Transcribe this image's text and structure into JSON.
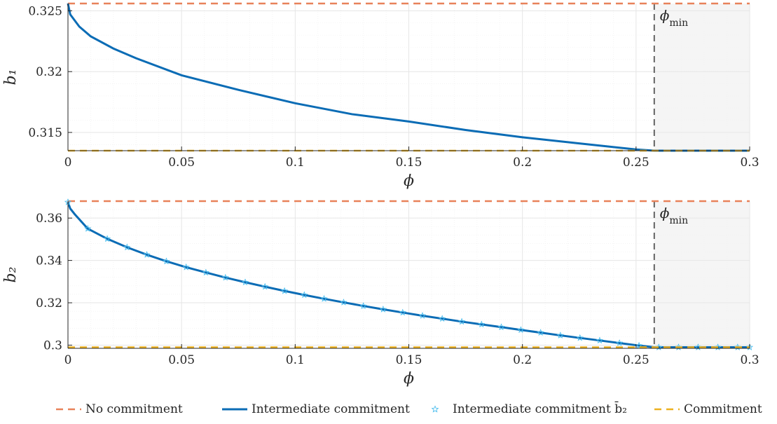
{
  "chart_data": [
    {
      "type": "line",
      "xlabel": "ϕ",
      "ylabel": "b₁",
      "xlim": [
        0,
        0.3
      ],
      "ylim": [
        0.3135,
        0.3256
      ],
      "xticks": [
        0,
        0.05,
        0.1,
        0.15,
        0.2,
        0.25,
        0.3
      ],
      "xtick_labels": [
        "0",
        "0.05",
        "0.1",
        "0.15",
        "0.2",
        "0.25",
        "0.3"
      ],
      "yticks": [
        0.315,
        0.32,
        0.325
      ],
      "ytick_labels": [
        "0.315",
        "0.32",
        "0.325"
      ],
      "grid": true,
      "shaded_region": [
        0.258,
        0.3
      ],
      "annotations": [
        {
          "text": "ϕmin",
          "x": 0.258
        }
      ],
      "series": [
        {
          "name": "No commitment",
          "style": "dashed",
          "color": "#E8825A",
          "x": [
            0,
            0.3
          ],
          "y": [
            0.3256,
            0.3256
          ]
        },
        {
          "name": "Intermediate commitment",
          "style": "solid",
          "color": "#0B6CB5",
          "x": [
            0,
            0.001,
            0.005,
            0.01,
            0.02,
            0.03,
            0.05,
            0.075,
            0.1,
            0.125,
            0.15,
            0.175,
            0.2,
            0.225,
            0.25,
            0.258,
            0.27,
            0.3
          ],
          "y": [
            0.3256,
            0.3247,
            0.3237,
            0.3229,
            0.3219,
            0.3211,
            0.3197,
            0.3185,
            0.3174,
            0.3165,
            0.3159,
            0.3152,
            0.3146,
            0.3141,
            0.3136,
            0.3135,
            0.3135,
            0.3135
          ]
        },
        {
          "name": "Commitment",
          "style": "dashed",
          "color": "#EDB120",
          "x": [
            0,
            0.3
          ],
          "y": [
            0.3135,
            0.3135
          ]
        }
      ]
    },
    {
      "type": "line",
      "xlabel": "ϕ",
      "ylabel": "b₂",
      "xlim": [
        0,
        0.3
      ],
      "ylim": [
        0.2985,
        0.368
      ],
      "xticks": [
        0,
        0.05,
        0.1,
        0.15,
        0.2,
        0.25,
        0.3
      ],
      "xtick_labels": [
        "0",
        "0.05",
        "0.1",
        "0.15",
        "0.2",
        "0.25",
        "0.3"
      ],
      "yticks": [
        0.3,
        0.32,
        0.34,
        0.36
      ],
      "ytick_labels": [
        "0.3",
        "0.32",
        "0.34",
        "0.36"
      ],
      "grid": true,
      "shaded_region": [
        0.258,
        0.3
      ],
      "annotations": [
        {
          "text": "ϕmin",
          "x": 0.258
        }
      ],
      "series": [
        {
          "name": "No commitment",
          "style": "dashed",
          "color": "#E8825A",
          "x": [
            0,
            0.3
          ],
          "y": [
            0.368,
            0.368
          ]
        },
        {
          "name": "Intermediate commitment",
          "style": "solid",
          "color": "#0B6CB5",
          "x": [
            0,
            0.001,
            0.003,
            0.0087,
            0.0173,
            0.026,
            0.0347,
            0.0433,
            0.052,
            0.0607,
            0.0693,
            0.078,
            0.0867,
            0.0953,
            0.104,
            0.1127,
            0.1213,
            0.13,
            0.1387,
            0.1473,
            0.156,
            0.1647,
            0.1733,
            0.182,
            0.1907,
            0.1993,
            0.208,
            0.2167,
            0.2253,
            0.234,
            0.2427,
            0.2513,
            0.258,
            0.3
          ],
          "y": [
            0.3675,
            0.3645,
            0.3618,
            0.355,
            0.3502,
            0.3462,
            0.3427,
            0.3396,
            0.3368,
            0.3343,
            0.3319,
            0.3297,
            0.3276,
            0.3256,
            0.3237,
            0.3219,
            0.3202,
            0.3185,
            0.3169,
            0.3154,
            0.3139,
            0.3125,
            0.3111,
            0.3098,
            0.3085,
            0.3072,
            0.3059,
            0.3046,
            0.3034,
            0.3022,
            0.301,
            0.2998,
            0.299,
            0.299
          ]
        },
        {
          "name": "Intermediate commitment b̄₂",
          "style": "markers",
          "marker": "star",
          "color": "#4DBEEE",
          "x": [
            0,
            0.0087,
            0.0173,
            0.026,
            0.0347,
            0.0433,
            0.052,
            0.0607,
            0.0693,
            0.078,
            0.0867,
            0.0953,
            0.104,
            0.1127,
            0.1213,
            0.13,
            0.1387,
            0.1473,
            0.156,
            0.1647,
            0.1733,
            0.182,
            0.1907,
            0.1993,
            0.208,
            0.2167,
            0.2253,
            0.234,
            0.2427,
            0.2513,
            0.26,
            0.2687,
            0.2773,
            0.286,
            0.2947,
            0.3
          ],
          "y": [
            0.3675,
            0.355,
            0.3502,
            0.3462,
            0.3427,
            0.3396,
            0.3368,
            0.3343,
            0.3319,
            0.3297,
            0.3276,
            0.3256,
            0.3237,
            0.3219,
            0.3202,
            0.3185,
            0.3169,
            0.3154,
            0.3139,
            0.3125,
            0.3111,
            0.3098,
            0.3085,
            0.3072,
            0.3059,
            0.3046,
            0.3034,
            0.3022,
            0.301,
            0.2998,
            0.299,
            0.299,
            0.299,
            0.299,
            0.299,
            0.299
          ]
        },
        {
          "name": "Commitment",
          "style": "dashed",
          "color": "#EDB120",
          "x": [
            0,
            0.3
          ],
          "y": [
            0.299,
            0.299
          ]
        }
      ]
    }
  ],
  "legend": {
    "placement": "bottom",
    "entries": [
      {
        "label": "No commitment",
        "style": "dashed",
        "color": "#E8825A"
      },
      {
        "label": "Intermediate commitment",
        "style": "solid",
        "color": "#0B6CB5"
      },
      {
        "label": "Intermediate commitment b̄₂",
        "style": "marker",
        "color": "#4DBEEE"
      },
      {
        "label": "Commitment",
        "style": "dashed",
        "color": "#EDB120"
      }
    ]
  },
  "colors": {
    "grid": "#e6e6e6",
    "minor_grid": "#f2f2f2",
    "axis": "#262626",
    "shade": "#f5f5f5",
    "vline": "#555555"
  }
}
